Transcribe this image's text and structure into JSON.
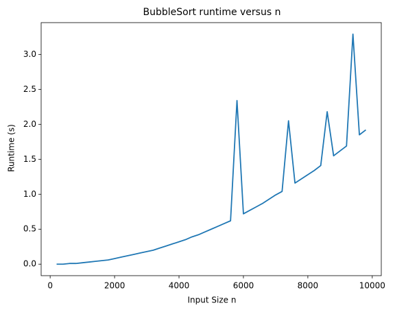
{
  "chart_data": {
    "type": "line",
    "title": "BubbleSort runtime versus n",
    "xlabel": "Input Size n",
    "ylabel": "Runtime (s)",
    "x": [
      200,
      400,
      600,
      800,
      1000,
      1200,
      1400,
      1600,
      1800,
      2000,
      2200,
      2400,
      2600,
      2800,
      3000,
      3200,
      3400,
      3600,
      3800,
      4000,
      4200,
      4400,
      4600,
      4800,
      5000,
      5200,
      5400,
      5600,
      5800,
      6000,
      6200,
      6400,
      6600,
      6800,
      7000,
      7200,
      7400,
      7600,
      7800,
      8000,
      8200,
      8400,
      8600,
      8800,
      9000,
      9200,
      9400,
      9600,
      9800
    ],
    "series": [
      {
        "color": "#1f77b4",
        "values": [
          0.0,
          0.0,
          0.01,
          0.01,
          0.02,
          0.03,
          0.04,
          0.05,
          0.06,
          0.08,
          0.1,
          0.12,
          0.14,
          0.16,
          0.18,
          0.2,
          0.23,
          0.26,
          0.29,
          0.32,
          0.35,
          0.39,
          0.42,
          0.46,
          0.5,
          0.54,
          0.58,
          0.62,
          2.34,
          0.72,
          0.77,
          0.82,
          0.87,
          0.93,
          0.99,
          1.04,
          2.05,
          1.16,
          1.22,
          1.28,
          1.34,
          1.41,
          2.18,
          1.55,
          1.62,
          1.69,
          3.29,
          1.85,
          1.92
        ]
      }
    ],
    "xlim": [
      -280,
      10280
    ],
    "xticks": [
      0,
      2000,
      4000,
      6000,
      8000,
      10000
    ],
    "ylim": [
      -0.1645,
      3.4545
    ],
    "yticks": [
      {
        "value": 0,
        "label": "0.0"
      },
      {
        "value": 0.5,
        "label": "0.5"
      },
      {
        "value": 1,
        "label": "1.0"
      },
      {
        "value": 1.5,
        "label": "1.5"
      },
      {
        "value": 2,
        "label": "2.0"
      },
      {
        "value": 2.5,
        "label": "2.5"
      },
      {
        "value": 3,
        "label": "3.0"
      }
    ]
  }
}
